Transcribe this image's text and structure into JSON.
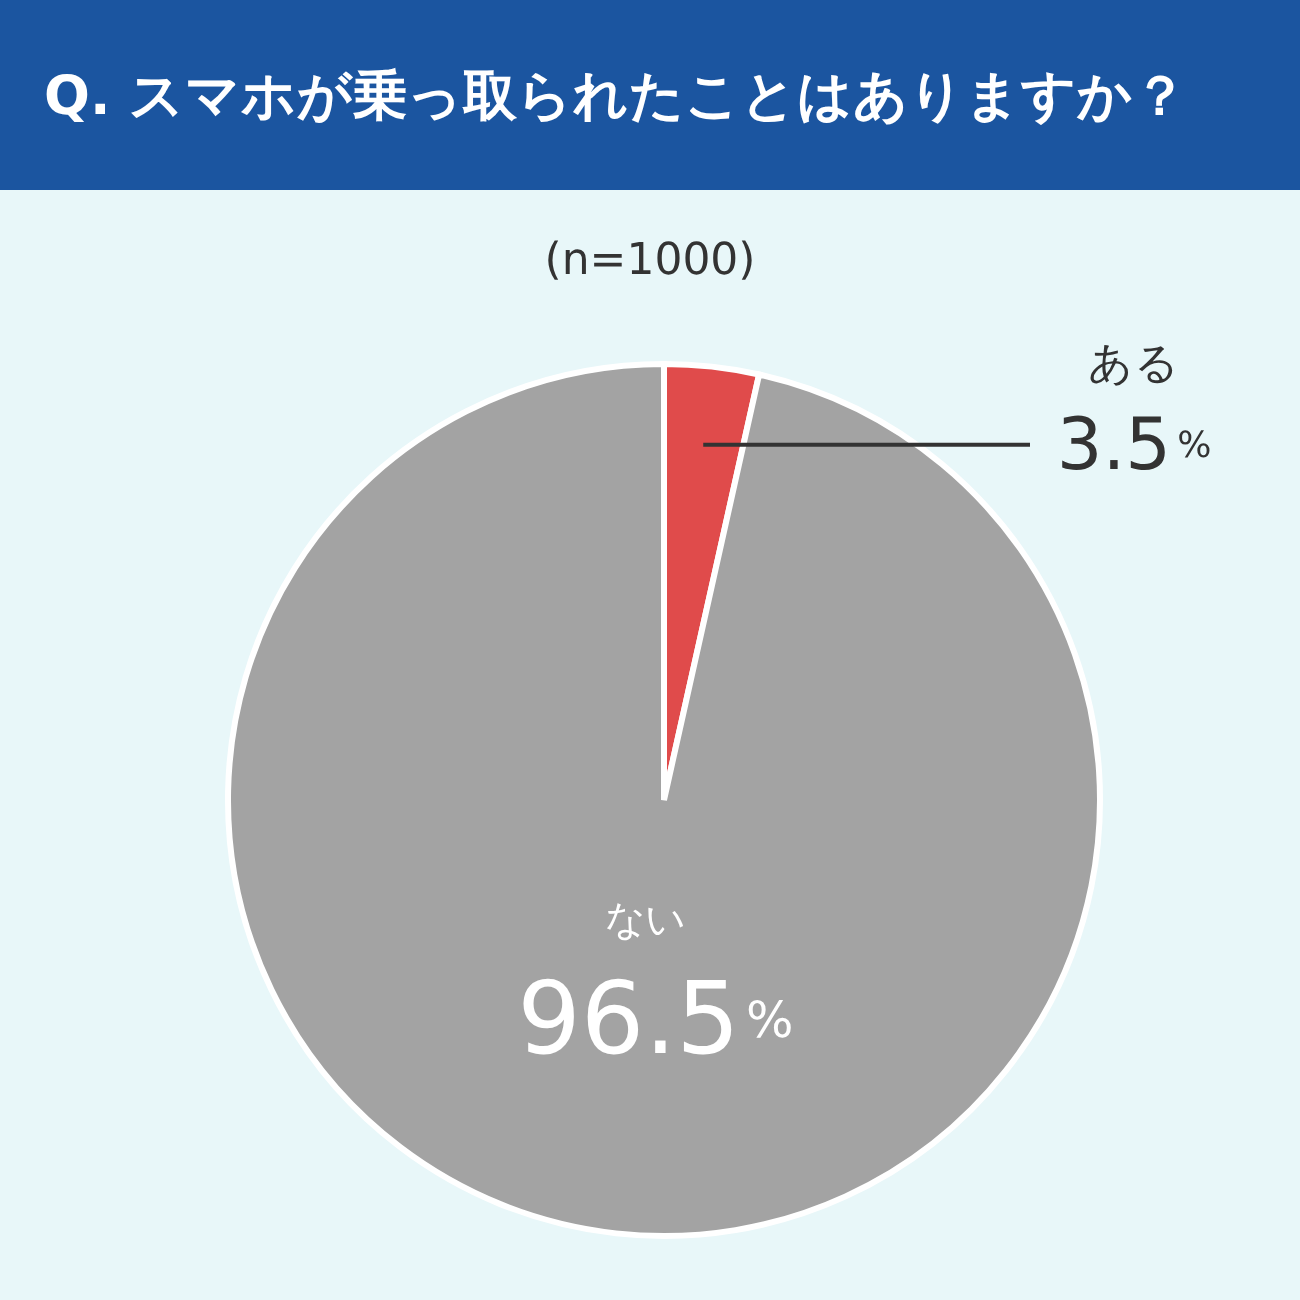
{
  "chart_data": {
    "type": "pie",
    "title": "Q. スマホが乗っ取られたことはありますか？",
    "subtitle": "(n=1000)",
    "categories": [
      "ある",
      "ない"
    ],
    "values": [
      3.5,
      96.5
    ],
    "colors": [
      "#e04b4b",
      "#a3a3a3"
    ],
    "value_labels": [
      "3.5%",
      "96.5%"
    ]
  }
}
